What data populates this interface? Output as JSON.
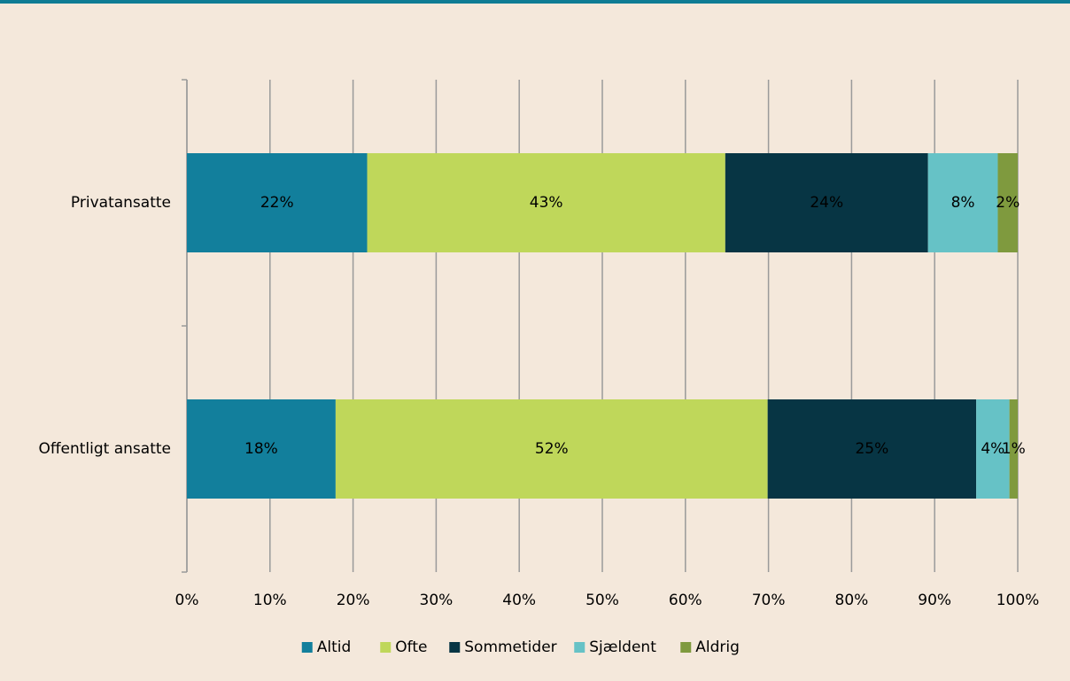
{
  "chart_data": {
    "type": "stacked_barh",
    "categories": [
      "Privatansatte",
      "Offentligt ansatte"
    ],
    "series": [
      {
        "name": "Altid",
        "color": "#127f9c",
        "label_color": "#ffffff",
        "values": [
          21.7,
          17.9
        ],
        "value_labels": [
          "22%",
          "18%"
        ]
      },
      {
        "name": "Ofte",
        "color": "#bfd75a",
        "label_color": "#ffffff",
        "values": [
          43.1,
          52.0
        ],
        "value_labels": [
          "43%",
          "52%"
        ]
      },
      {
        "name": "Sommetider",
        "color": "#073544",
        "label_color": "#ffffff",
        "values": [
          24.4,
          25.1
        ],
        "value_labels": [
          "24%",
          "25%"
        ]
      },
      {
        "name": "Sjældent",
        "color": "#66c2c6",
        "label_color": "#000000",
        "values": [
          8.4,
          4.0
        ],
        "value_labels": [
          "8%",
          "4%"
        ]
      },
      {
        "name": "Aldrig",
        "color": "#7f9a3e",
        "label_color": "#000000",
        "values": [
          2.4,
          1.0
        ],
        "value_labels": [
          "2%",
          "1%"
        ]
      }
    ],
    "xlim": [
      0,
      100
    ],
    "xticks": [
      {
        "value": 0,
        "label": "0%"
      },
      {
        "value": 10,
        "label": "10%"
      },
      {
        "value": 20,
        "label": "20%"
      },
      {
        "value": 30,
        "label": "30%"
      },
      {
        "value": 40,
        "label": "40%"
      },
      {
        "value": 50,
        "label": "50%"
      },
      {
        "value": 60,
        "label": "60%"
      },
      {
        "value": 70,
        "label": "70%"
      },
      {
        "value": 80,
        "label": "80%"
      },
      {
        "value": 90,
        "label": "90%"
      },
      {
        "value": 100,
        "label": "100%"
      }
    ],
    "grid": true,
    "legend": "bottom"
  }
}
